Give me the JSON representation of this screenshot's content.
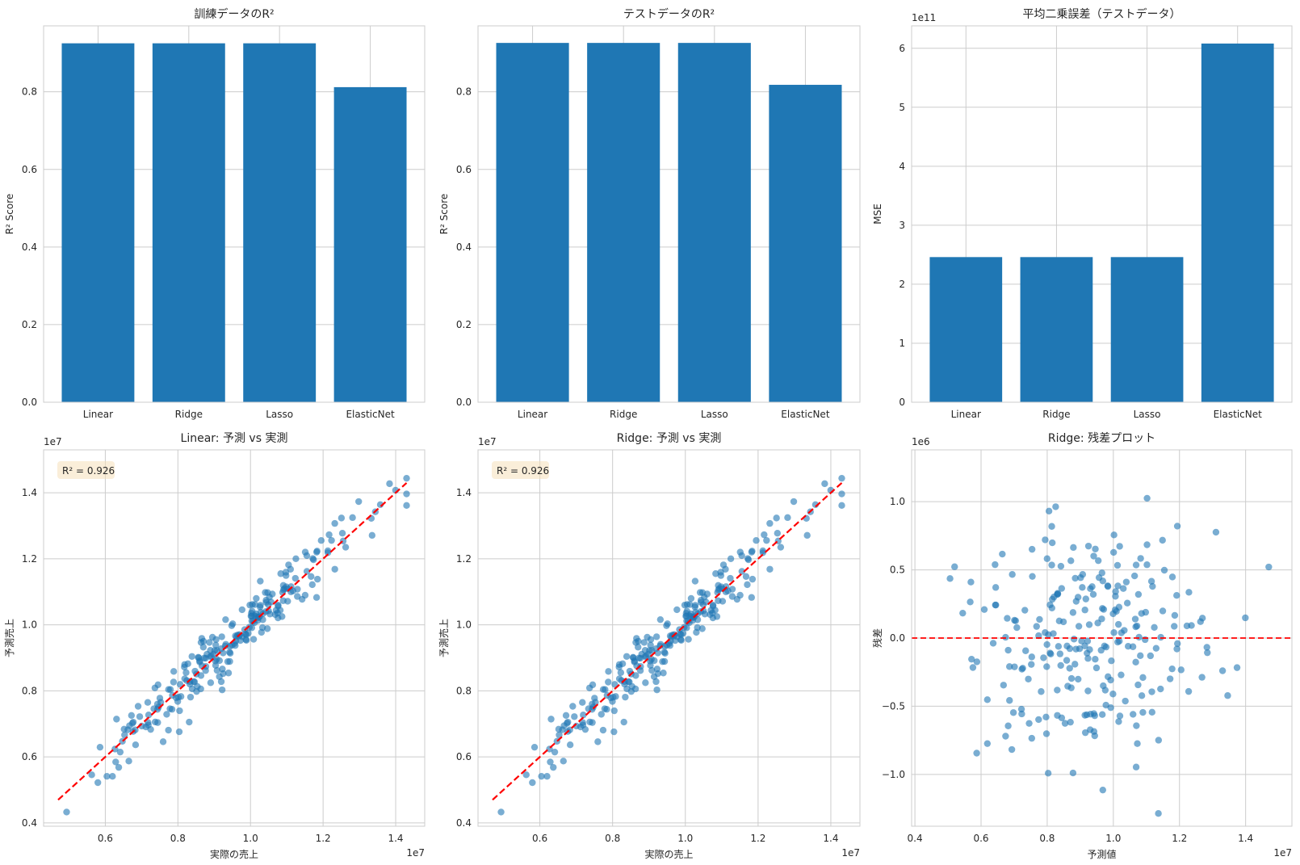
{
  "chart_data": [
    {
      "type": "bar",
      "title": "訓練データのR²",
      "xlabel": "",
      "ylabel": "R² Score",
      "categories": [
        "Linear",
        "Ridge",
        "Lasso",
        "ElasticNet"
      ],
      "values": [
        0.925,
        0.925,
        0.925,
        0.812
      ],
      "ylim": [
        0,
        0.97
      ],
      "yticks": [
        0.0,
        0.2,
        0.4,
        0.6,
        0.8
      ],
      "ytick_labels": [
        "0.0",
        "0.2",
        "0.4",
        "0.6",
        "0.8"
      ],
      "grid": true,
      "color": "#1f77b4"
    },
    {
      "type": "bar",
      "title": "テストデータのR²",
      "xlabel": "",
      "ylabel": "R² Score",
      "categories": [
        "Linear",
        "Ridge",
        "Lasso",
        "ElasticNet"
      ],
      "values": [
        0.926,
        0.926,
        0.926,
        0.818
      ],
      "ylim": [
        0,
        0.97
      ],
      "yticks": [
        0.0,
        0.2,
        0.4,
        0.6,
        0.8
      ],
      "ytick_labels": [
        "0.0",
        "0.2",
        "0.4",
        "0.6",
        "0.8"
      ],
      "grid": true,
      "color": "#1f77b4"
    },
    {
      "type": "bar",
      "title": "平均二乗誤差（テストデータ）",
      "xlabel": "",
      "ylabel": "MSE",
      "offset_label": "1e11",
      "categories": [
        "Linear",
        "Ridge",
        "Lasso",
        "ElasticNet"
      ],
      "values": [
        246000000000.0,
        246000000000.0,
        246000000000.0,
        608000000000.0
      ],
      "ylim": [
        0,
        638000000000.0
      ],
      "yticks": [
        0,
        100000000000.0,
        200000000000.0,
        300000000000.0,
        400000000000.0,
        500000000000.0,
        600000000000.0
      ],
      "ytick_labels": [
        "0",
        "1",
        "2",
        "3",
        "4",
        "5",
        "6"
      ],
      "grid": true,
      "color": "#1f77b4"
    },
    {
      "type": "scatter",
      "title": "Linear: 予測 vs 実測",
      "xlabel": "実際の売上",
      "ylabel": "予測売上",
      "x_offset_label": "1e7",
      "y_offset_label": "1e7",
      "annotation": "R² = 0.926",
      "xlim": [
        4300000.0,
        14800000.0
      ],
      "ylim": [
        3900000.0,
        15300000.0
      ],
      "xticks": [
        6000000.0,
        8000000.0,
        10000000.0,
        12000000.0,
        14000000.0
      ],
      "xtick_labels": [
        "0.6",
        "0.8",
        "1.0",
        "1.2",
        "1.4"
      ],
      "yticks": [
        4000000.0,
        6000000.0,
        8000000.0,
        10000000.0,
        12000000.0,
        14000000.0
      ],
      "ytick_labels": [
        "0.4",
        "0.6",
        "0.8",
        "1.0",
        "1.2",
        "1.4"
      ],
      "reference_line": {
        "from": [
          4700000.0,
          4700000.0
        ],
        "to": [
          14300000.0,
          14300000.0
        ],
        "color": "#ff0000",
        "style": "dashed"
      },
      "point_color": "#1f77b4",
      "grid": true
    },
    {
      "type": "scatter",
      "title": "Ridge: 予測 vs 実測",
      "xlabel": "実際の売上",
      "ylabel": "予測売上",
      "x_offset_label": "1e7",
      "y_offset_label": "1e7",
      "annotation": "R² = 0.926",
      "xlim": [
        4300000.0,
        14800000.0
      ],
      "ylim": [
        3900000.0,
        15300000.0
      ],
      "xticks": [
        6000000.0,
        8000000.0,
        10000000.0,
        12000000.0,
        14000000.0
      ],
      "xtick_labels": [
        "0.6",
        "0.8",
        "1.0",
        "1.2",
        "1.4"
      ],
      "yticks": [
        4000000.0,
        6000000.0,
        8000000.0,
        10000000.0,
        12000000.0,
        14000000.0
      ],
      "ytick_labels": [
        "0.4",
        "0.6",
        "0.8",
        "1.0",
        "1.2",
        "1.4"
      ],
      "reference_line": {
        "from": [
          4700000.0,
          4700000.0
        ],
        "to": [
          14300000.0,
          14300000.0
        ],
        "color": "#ff0000",
        "style": "dashed"
      },
      "point_color": "#1f77b4",
      "grid": true
    },
    {
      "type": "scatter",
      "title": "Ridge: 残差プロット",
      "xlabel": "予測値",
      "ylabel": "残差",
      "x_offset_label": "1e7",
      "y_offset_label": "1e6",
      "xlim": [
        3900000.0,
        15400000.0
      ],
      "ylim": [
        -1380000.0,
        1380000.0
      ],
      "xticks": [
        4000000.0,
        6000000.0,
        8000000.0,
        10000000.0,
        12000000.0,
        14000000.0
      ],
      "xtick_labels": [
        "0.4",
        "0.6",
        "0.8",
        "1.0",
        "1.2",
        "1.4"
      ],
      "yticks": [
        -1000000.0,
        -500000.0,
        0,
        500000.0,
        1000000.0
      ],
      "ytick_labels": [
        "−1.0",
        "−0.5",
        "0.0",
        "0.5",
        "1.0"
      ],
      "reference_line": {
        "y": 0,
        "color": "#ff0000",
        "style": "dashed"
      },
      "point_color": "#1f77b4",
      "grid": true
    }
  ]
}
